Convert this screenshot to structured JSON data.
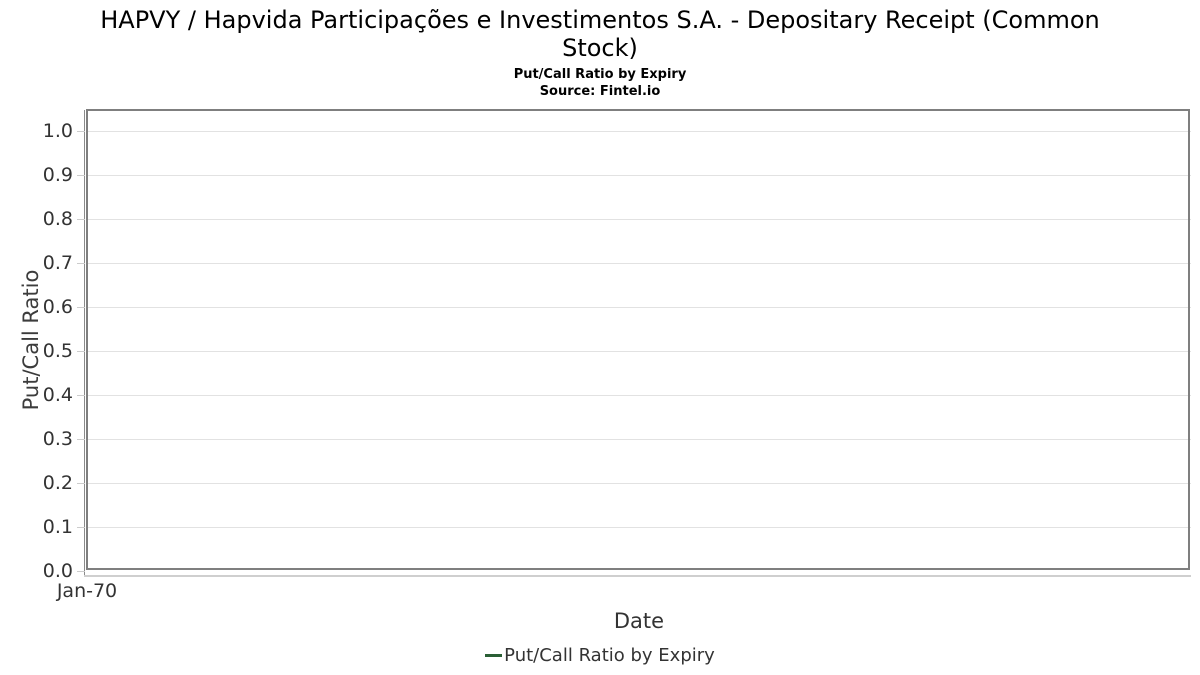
{
  "header": {
    "title_line1": "HAPVY / Hapvida Participações e Investimentos S.A. - Depositary Receipt (Common",
    "title_line2": "Stock)",
    "subtitle": "Put/Call Ratio by Expiry",
    "source": "Source: Fintel.io"
  },
  "chart_data": {
    "type": "line",
    "title": "HAPVY / Hapvida Participações e Investimentos S.A. - Depositary Receipt (Common Stock)",
    "subtitle": "Put/Call Ratio by Expiry",
    "source": "Source: Fintel.io",
    "xlabel": "Date",
    "ylabel": "Put/Call Ratio",
    "x_tick_labels": [
      "Jan-70"
    ],
    "y_ticks": [
      0.0,
      0.1,
      0.2,
      0.3,
      0.4,
      0.5,
      0.6,
      0.7,
      0.8,
      0.9,
      1.0
    ],
    "ylim": [
      0.0,
      1.05
    ],
    "grid": "horizontal",
    "legend_position": "bottom",
    "series": [
      {
        "name": "Put/Call Ratio by Expiry",
        "color": "#2a5f35",
        "x": [],
        "values": []
      }
    ],
    "style_colors": {
      "gridline": "#e2e2e2",
      "plot_border": "#7f7f7f",
      "axis_line": "#cfcfcf",
      "tick_text": "#333333"
    }
  }
}
